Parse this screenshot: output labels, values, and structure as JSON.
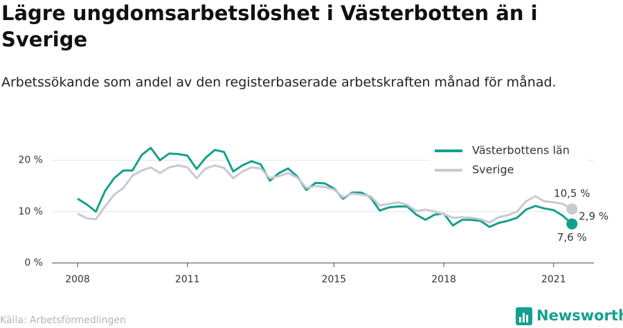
{
  "chart_data": {
    "type": "line",
    "title": "Lägre ungdomsarbetslöshet i Västerbotten än i Sverige",
    "subtitle": "Arbetssökande som andel av den registerbaserade arbetskraften månad för månad.",
    "x": [
      2008,
      2008.25,
      2008.5,
      2008.75,
      2009,
      2009.25,
      2009.5,
      2009.75,
      2010,
      2010.25,
      2010.5,
      2010.75,
      2011,
      2011.25,
      2011.5,
      2011.75,
      2012,
      2012.25,
      2012.5,
      2012.75,
      2013,
      2013.25,
      2013.5,
      2013.75,
      2014,
      2014.25,
      2014.5,
      2014.75,
      2015,
      2015.25,
      2015.5,
      2015.75,
      2016,
      2016.25,
      2016.5,
      2016.75,
      2017,
      2017.25,
      2017.5,
      2017.75,
      2018,
      2018.25,
      2018.5,
      2018.75,
      2019,
      2019.25,
      2019.5,
      2019.75,
      2020,
      2020.25,
      2020.5,
      2020.75,
      2021,
      2021.25,
      2021.5
    ],
    "series": [
      {
        "name": "Västerbottens län",
        "color": "#14a08f",
        "values": [
          12.5,
          11.4,
          10.0,
          14.0,
          16.5,
          18.0,
          18.0,
          21.0,
          22.4,
          20.0,
          21.3,
          21.2,
          20.9,
          18.3,
          20.5,
          22.0,
          21.6,
          17.8,
          19.0,
          19.8,
          19.2,
          16.0,
          17.5,
          18.4,
          16.8,
          14.2,
          15.6,
          15.5,
          14.5,
          12.5,
          13.7,
          13.7,
          12.8,
          10.2,
          10.8,
          11.0,
          11.0,
          9.4,
          8.4,
          9.4,
          9.6,
          7.3,
          8.4,
          8.4,
          8.2,
          7.0,
          7.8,
          8.2,
          8.8,
          10.4,
          11.1,
          10.6,
          10.3,
          9.2,
          7.6
        ]
      },
      {
        "name": "Sverige",
        "color": "#c9c9d3",
        "values": [
          9.6,
          8.7,
          8.5,
          11.0,
          13.3,
          14.6,
          17.0,
          18.0,
          18.6,
          17.5,
          18.6,
          19.0,
          18.6,
          16.5,
          18.4,
          19.0,
          18.5,
          16.5,
          17.8,
          18.6,
          18.4,
          16.5,
          16.9,
          17.5,
          16.6,
          14.6,
          15.0,
          14.8,
          14.3,
          12.8,
          13.5,
          13.3,
          13.0,
          11.2,
          11.5,
          11.8,
          11.3,
          10.1,
          10.4,
          10.0,
          9.5,
          8.8,
          8.9,
          8.8,
          8.5,
          7.9,
          8.9,
          9.3,
          10.0,
          12.0,
          13.0,
          12.0,
          11.8,
          11.5,
          10.5
        ]
      }
    ],
    "xlim": [
      2007.3,
      2022.1
    ],
    "xticks": [
      2008,
      2011,
      2015,
      2018,
      2021
    ],
    "ylim": [
      0,
      22.5
    ],
    "yticks": [
      {
        "value": 0,
        "label": "0 %"
      },
      {
        "value": 10,
        "label": "10 %"
      },
      {
        "value": 20,
        "label": "20 %"
      }
    ],
    "grid": true,
    "legend": "top-right",
    "annotations": [
      "10,5 %",
      "2,9 %",
      "7,6 %"
    ],
    "source": "Källa: Arbetsförmedlingen",
    "brand": "Newsworthy"
  }
}
